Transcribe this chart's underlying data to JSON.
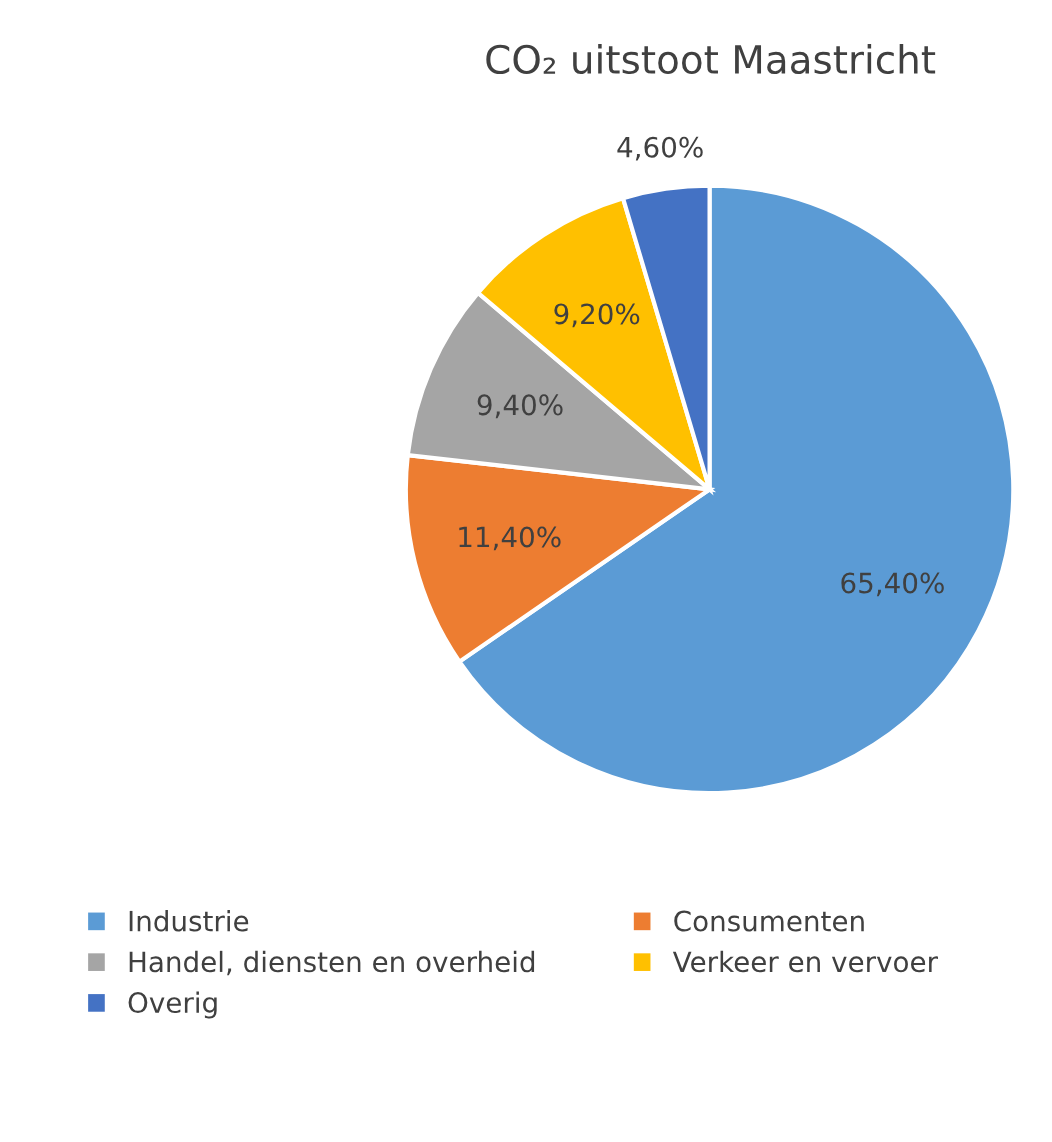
{
  "chart_data": {
    "type": "pie",
    "title": "CO₂ uitstoot Maastricht",
    "categories": [
      "Industrie",
      "Consumenten",
      "Handel, diensten en overheid",
      "Verkeer en vervoer",
      "Overig"
    ],
    "values": [
      65.4,
      11.4,
      9.4,
      9.2,
      4.6
    ],
    "colors": [
      "#5b9bd5",
      "#ed7d31",
      "#a5a5a5",
      "#ffc000",
      "#4472c4"
    ],
    "value_labels": [
      "65,40%",
      "11,40%",
      "9,40%",
      "9,20%",
      "4,60%"
    ],
    "legend": "bottom"
  }
}
